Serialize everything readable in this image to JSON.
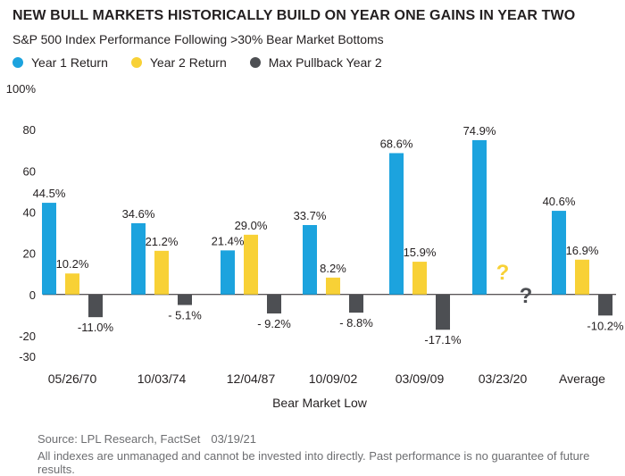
{
  "header": {
    "title": "NEW BULL MARKETS HISTORICALLY BUILD ON YEAR ONE GAINS IN YEAR TWO",
    "subtitle": "S&P 500 Index Performance Following >30% Bear Market Bottoms"
  },
  "footer": {
    "source": "Source: LPL Research, FactSet",
    "date": "03/19/21",
    "disclaimer": "All indexes are unmanaged and cannot be invested into directly. Past performance is no guarantee of future results."
  },
  "colors": {
    "year1": "#1ca3de",
    "year2": "#f8d136",
    "pullback": "#4d4f53",
    "axis": "#231f20"
  },
  "chart_data": {
    "type": "bar",
    "categories": [
      "05/26/70",
      "10/03/74",
      "12/04/87",
      "10/09/02",
      "03/09/09",
      "03/23/20",
      "Average"
    ],
    "series": [
      {
        "name": "Year 1 Return",
        "color": "#1ca3de",
        "values": [
          44.5,
          34.6,
          21.4,
          33.7,
          68.6,
          74.9,
          40.6
        ],
        "labels": [
          "44.5%",
          "34.6%",
          "21.4%",
          "33.7%",
          "68.6%",
          "74.9%",
          "40.6%"
        ]
      },
      {
        "name": "Year 2 Return",
        "color": "#f8d136",
        "values": [
          10.2,
          21.2,
          29.0,
          8.2,
          15.9,
          null,
          16.9
        ],
        "labels": [
          "10.2%",
          "21.2%",
          "29.0%",
          "8.2%",
          "15.9%",
          "?",
          "16.9%"
        ]
      },
      {
        "name": "Max Pullback Year 2",
        "color": "#4d4f53",
        "values": [
          -11.0,
          -5.1,
          -9.2,
          -8.8,
          -17.1,
          null,
          -10.2
        ],
        "labels": [
          "-11.0%",
          "- 5.1%",
          "- 9.2%",
          "- 8.8%",
          "-17.1%",
          "?",
          "-10.2%"
        ]
      },
      "placeholder"
    ],
    "xlabel": "Bear Market Low",
    "ylabel": "",
    "ylim": [
      -30,
      100
    ],
    "yticks": [
      -30,
      -20,
      0,
      20,
      40,
      60,
      80,
      100
    ],
    "ytick_labels": [
      "-30",
      "-20",
      "0",
      "20",
      "40",
      "60",
      "80",
      "100%"
    ],
    "grid": false,
    "legend_position": "top-left"
  }
}
